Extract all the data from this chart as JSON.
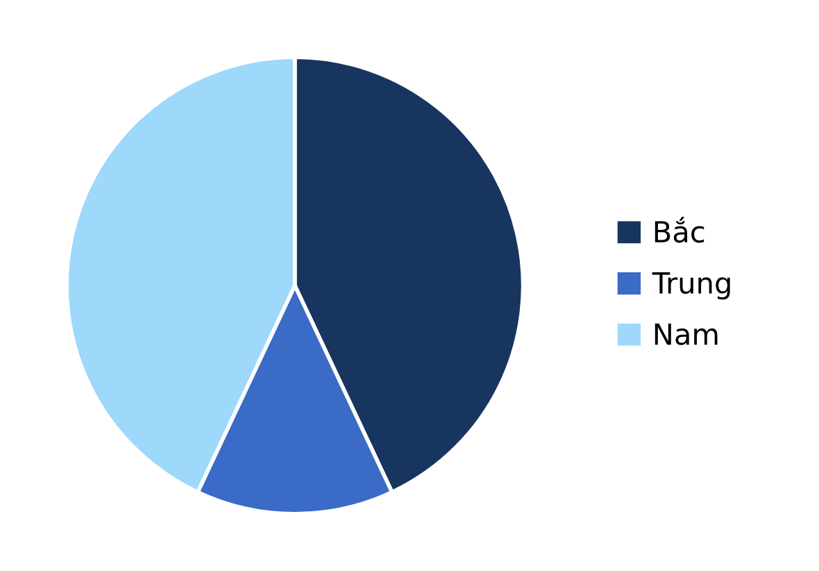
{
  "chart_data": {
    "type": "pie",
    "categories": [
      "Bắc",
      "Trung",
      "Nam"
    ],
    "values": [
      43,
      14,
      43
    ],
    "colors": [
      "#17355f",
      "#3a6bc6",
      "#9ed8fb"
    ],
    "legend": "right"
  }
}
